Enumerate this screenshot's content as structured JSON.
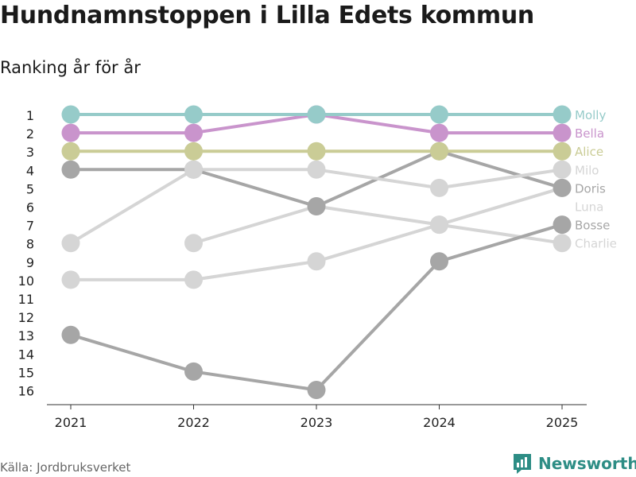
{
  "title": "Hundnamnstoppen i Lilla Edets kommun",
  "subtitle": "Ranking år för år",
  "source": "Källa: Jordbruksverket",
  "brand": "Newsworthy",
  "chart_data": {
    "type": "line",
    "x": [
      "2021",
      "2022",
      "2023",
      "2024",
      "2025"
    ],
    "y_ticks": [
      1,
      2,
      3,
      4,
      5,
      6,
      7,
      8,
      9,
      10,
      11,
      12,
      13,
      14,
      15,
      16
    ],
    "ylim": [
      1,
      16
    ],
    "y_inverted": true,
    "series": [
      {
        "name": "Molly",
        "color": "#96cbc9",
        "values": [
          1,
          1,
          1,
          1,
          1
        ]
      },
      {
        "name": "Bella",
        "color": "#c994cc",
        "values": [
          2,
          2,
          1,
          2,
          2
        ]
      },
      {
        "name": "Alice",
        "color": "#cacc96",
        "values": [
          3,
          3,
          3,
          3,
          3
        ]
      },
      {
        "name": "Milo",
        "color": "#d5d5d5",
        "values": [
          8,
          4,
          4,
          5,
          4
        ]
      },
      {
        "name": "Doris",
        "color": "#a6a6a6",
        "values": [
          4,
          4,
          6,
          3,
          5
        ]
      },
      {
        "name": "Luna",
        "color": "#d5d5d5",
        "values": [
          10,
          10,
          9,
          7,
          5
        ]
      },
      {
        "name": "Bosse",
        "color": "#a6a6a6",
        "values": [
          13,
          15,
          16,
          9,
          7
        ]
      },
      {
        "name": "Charlie",
        "color": "#d5d5d5",
        "values": [
          null,
          8,
          6,
          7,
          8
        ]
      }
    ],
    "grid": false
  }
}
